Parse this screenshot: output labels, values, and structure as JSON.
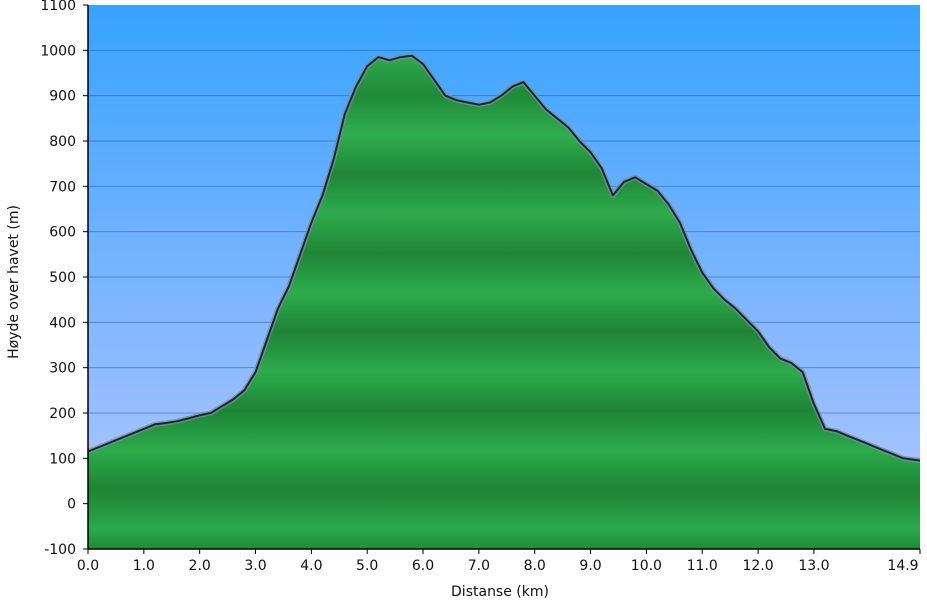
{
  "chart_data": {
    "type": "area",
    "title": "",
    "xlabel": "Distanse   (km)",
    "ylabel": "Høyde over havet (m)",
    "xlim": [
      0,
      14.9
    ],
    "ylim": [
      -100,
      1100
    ],
    "x_ticks": [
      "0.0",
      "1.0",
      "2.0",
      "3.0",
      "4.0",
      "5.0",
      "6.0",
      "7.0",
      "8.0",
      "9.0",
      "10.0",
      "11.0",
      "12.0",
      "13.0",
      "14.9"
    ],
    "y_ticks": [
      "-100",
      "0",
      "100",
      "200",
      "300",
      "400",
      "500",
      "600",
      "700",
      "800",
      "900",
      "1000",
      "1100"
    ],
    "grid": true,
    "series": [
      {
        "x": [
          0.0,
          0.2,
          0.4,
          0.6,
          0.8,
          1.0,
          1.2,
          1.4,
          1.6,
          1.8,
          2.0,
          2.2,
          2.4,
          2.6,
          2.8,
          3.0,
          3.2,
          3.4,
          3.6,
          3.8,
          4.0,
          4.2,
          4.4,
          4.6,
          4.8,
          5.0,
          5.2,
          5.4,
          5.6,
          5.8,
          6.0,
          6.2,
          6.4,
          6.6,
          6.8,
          7.0,
          7.2,
          7.4,
          7.6,
          7.8,
          8.0,
          8.2,
          8.4,
          8.6,
          8.8,
          9.0,
          9.2,
          9.4,
          9.6,
          9.8,
          10.0,
          10.2,
          10.4,
          10.6,
          10.8,
          11.0,
          11.2,
          11.4,
          11.6,
          11.8,
          12.0,
          12.2,
          12.4,
          12.6,
          12.8,
          13.0,
          13.2,
          13.4,
          13.6,
          13.8,
          14.0,
          14.2,
          14.4,
          14.6,
          14.9
        ],
        "y": [
          115,
          125,
          135,
          145,
          155,
          165,
          175,
          178,
          182,
          188,
          195,
          200,
          215,
          230,
          250,
          290,
          360,
          430,
          480,
          550,
          620,
          680,
          760,
          860,
          920,
          965,
          985,
          978,
          985,
          988,
          970,
          935,
          900,
          890,
          885,
          880,
          885,
          900,
          920,
          930,
          900,
          870,
          850,
          830,
          800,
          775,
          740,
          680,
          710,
          720,
          705,
          690,
          660,
          620,
          560,
          510,
          475,
          450,
          430,
          405,
          380,
          345,
          320,
          310,
          290,
          220,
          165,
          160,
          150,
          140,
          130,
          120,
          110,
          100,
          95
        ]
      }
    ]
  }
}
